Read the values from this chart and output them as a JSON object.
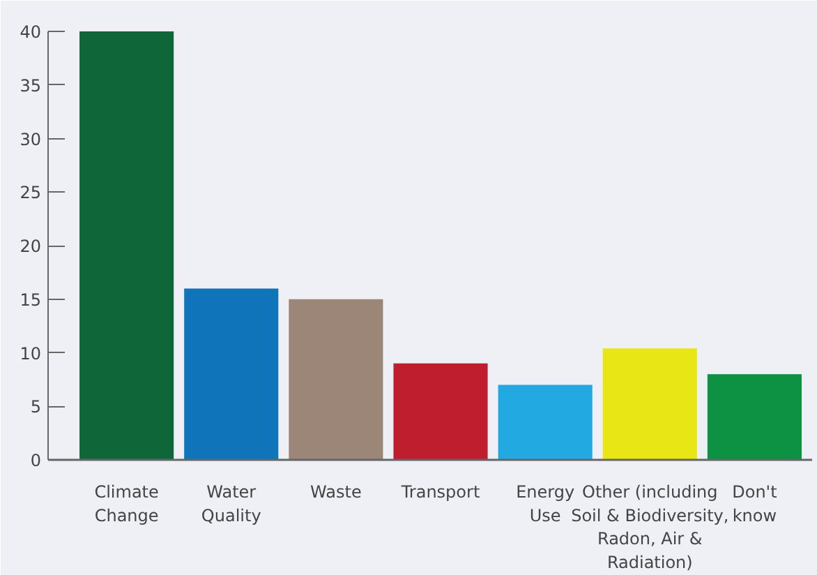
{
  "chart_data": {
    "type": "bar",
    "categories": [
      "Climate\nChange",
      "Water\nQuality",
      "Waste",
      "Transport",
      "Energy\nUse",
      "Other (including\nSoil & Biodiversity,\nRadon, Air &\nRadiation)",
      "Don't\nknow"
    ],
    "values": [
      40,
      16,
      15,
      9,
      7,
      10.4,
      8
    ],
    "colors": [
      "#0f6638",
      "#1074bb",
      "#9c8677",
      "#be1e2d",
      "#23a9e1",
      "#e8e615",
      "#0d9143"
    ],
    "ylim": [
      0,
      40
    ],
    "yticks": [
      0,
      5,
      10,
      15,
      20,
      25,
      30,
      35,
      40
    ],
    "grid": false
  }
}
